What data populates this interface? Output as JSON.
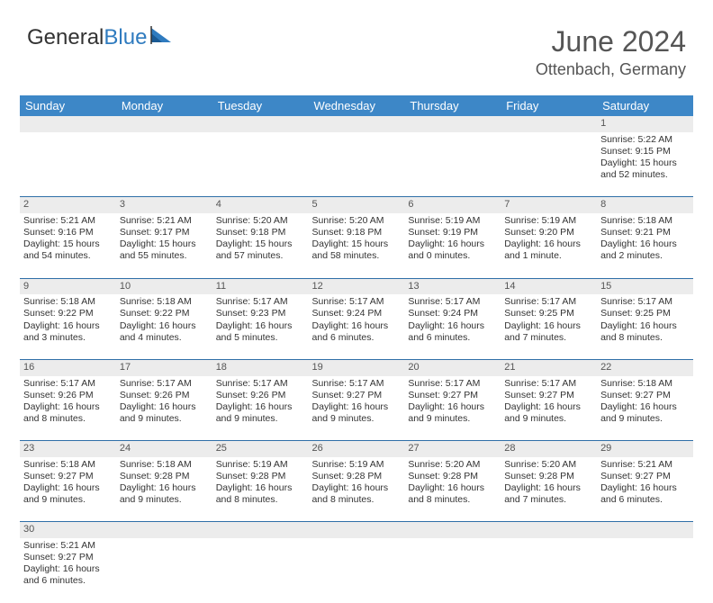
{
  "logo": {
    "text1": "General",
    "text2": "Blue"
  },
  "title": "June 2024",
  "location": "Ottenbach, Germany",
  "colors": {
    "header_bg": "#3d87c7",
    "header_text": "#ffffff",
    "daynum_bg": "#ececec",
    "border": "#2f6fa8",
    "body_text": "#333333",
    "logo_blue": "#2f7bbf"
  },
  "day_headers": [
    "Sunday",
    "Monday",
    "Tuesday",
    "Wednesday",
    "Thursday",
    "Friday",
    "Saturday"
  ],
  "weeks": [
    {
      "nums": [
        "",
        "",
        "",
        "",
        "",
        "",
        "1"
      ],
      "cells": [
        null,
        null,
        null,
        null,
        null,
        null,
        {
          "sr": "Sunrise: 5:22 AM",
          "ss": "Sunset: 9:15 PM",
          "dl1": "Daylight: 15 hours",
          "dl2": "and 52 minutes."
        }
      ]
    },
    {
      "nums": [
        "2",
        "3",
        "4",
        "5",
        "6",
        "7",
        "8"
      ],
      "cells": [
        {
          "sr": "Sunrise: 5:21 AM",
          "ss": "Sunset: 9:16 PM",
          "dl1": "Daylight: 15 hours",
          "dl2": "and 54 minutes."
        },
        {
          "sr": "Sunrise: 5:21 AM",
          "ss": "Sunset: 9:17 PM",
          "dl1": "Daylight: 15 hours",
          "dl2": "and 55 minutes."
        },
        {
          "sr": "Sunrise: 5:20 AM",
          "ss": "Sunset: 9:18 PM",
          "dl1": "Daylight: 15 hours",
          "dl2": "and 57 minutes."
        },
        {
          "sr": "Sunrise: 5:20 AM",
          "ss": "Sunset: 9:18 PM",
          "dl1": "Daylight: 15 hours",
          "dl2": "and 58 minutes."
        },
        {
          "sr": "Sunrise: 5:19 AM",
          "ss": "Sunset: 9:19 PM",
          "dl1": "Daylight: 16 hours",
          "dl2": "and 0 minutes."
        },
        {
          "sr": "Sunrise: 5:19 AM",
          "ss": "Sunset: 9:20 PM",
          "dl1": "Daylight: 16 hours",
          "dl2": "and 1 minute."
        },
        {
          "sr": "Sunrise: 5:18 AM",
          "ss": "Sunset: 9:21 PM",
          "dl1": "Daylight: 16 hours",
          "dl2": "and 2 minutes."
        }
      ]
    },
    {
      "nums": [
        "9",
        "10",
        "11",
        "12",
        "13",
        "14",
        "15"
      ],
      "cells": [
        {
          "sr": "Sunrise: 5:18 AM",
          "ss": "Sunset: 9:22 PM",
          "dl1": "Daylight: 16 hours",
          "dl2": "and 3 minutes."
        },
        {
          "sr": "Sunrise: 5:18 AM",
          "ss": "Sunset: 9:22 PM",
          "dl1": "Daylight: 16 hours",
          "dl2": "and 4 minutes."
        },
        {
          "sr": "Sunrise: 5:17 AM",
          "ss": "Sunset: 9:23 PM",
          "dl1": "Daylight: 16 hours",
          "dl2": "and 5 minutes."
        },
        {
          "sr": "Sunrise: 5:17 AM",
          "ss": "Sunset: 9:24 PM",
          "dl1": "Daylight: 16 hours",
          "dl2": "and 6 minutes."
        },
        {
          "sr": "Sunrise: 5:17 AM",
          "ss": "Sunset: 9:24 PM",
          "dl1": "Daylight: 16 hours",
          "dl2": "and 6 minutes."
        },
        {
          "sr": "Sunrise: 5:17 AM",
          "ss": "Sunset: 9:25 PM",
          "dl1": "Daylight: 16 hours",
          "dl2": "and 7 minutes."
        },
        {
          "sr": "Sunrise: 5:17 AM",
          "ss": "Sunset: 9:25 PM",
          "dl1": "Daylight: 16 hours",
          "dl2": "and 8 minutes."
        }
      ]
    },
    {
      "nums": [
        "16",
        "17",
        "18",
        "19",
        "20",
        "21",
        "22"
      ],
      "cells": [
        {
          "sr": "Sunrise: 5:17 AM",
          "ss": "Sunset: 9:26 PM",
          "dl1": "Daylight: 16 hours",
          "dl2": "and 8 minutes."
        },
        {
          "sr": "Sunrise: 5:17 AM",
          "ss": "Sunset: 9:26 PM",
          "dl1": "Daylight: 16 hours",
          "dl2": "and 9 minutes."
        },
        {
          "sr": "Sunrise: 5:17 AM",
          "ss": "Sunset: 9:26 PM",
          "dl1": "Daylight: 16 hours",
          "dl2": "and 9 minutes."
        },
        {
          "sr": "Sunrise: 5:17 AM",
          "ss": "Sunset: 9:27 PM",
          "dl1": "Daylight: 16 hours",
          "dl2": "and 9 minutes."
        },
        {
          "sr": "Sunrise: 5:17 AM",
          "ss": "Sunset: 9:27 PM",
          "dl1": "Daylight: 16 hours",
          "dl2": "and 9 minutes."
        },
        {
          "sr": "Sunrise: 5:17 AM",
          "ss": "Sunset: 9:27 PM",
          "dl1": "Daylight: 16 hours",
          "dl2": "and 9 minutes."
        },
        {
          "sr": "Sunrise: 5:18 AM",
          "ss": "Sunset: 9:27 PM",
          "dl1": "Daylight: 16 hours",
          "dl2": "and 9 minutes."
        }
      ]
    },
    {
      "nums": [
        "23",
        "24",
        "25",
        "26",
        "27",
        "28",
        "29"
      ],
      "cells": [
        {
          "sr": "Sunrise: 5:18 AM",
          "ss": "Sunset: 9:27 PM",
          "dl1": "Daylight: 16 hours",
          "dl2": "and 9 minutes."
        },
        {
          "sr": "Sunrise: 5:18 AM",
          "ss": "Sunset: 9:28 PM",
          "dl1": "Daylight: 16 hours",
          "dl2": "and 9 minutes."
        },
        {
          "sr": "Sunrise: 5:19 AM",
          "ss": "Sunset: 9:28 PM",
          "dl1": "Daylight: 16 hours",
          "dl2": "and 8 minutes."
        },
        {
          "sr": "Sunrise: 5:19 AM",
          "ss": "Sunset: 9:28 PM",
          "dl1": "Daylight: 16 hours",
          "dl2": "and 8 minutes."
        },
        {
          "sr": "Sunrise: 5:20 AM",
          "ss": "Sunset: 9:28 PM",
          "dl1": "Daylight: 16 hours",
          "dl2": "and 8 minutes."
        },
        {
          "sr": "Sunrise: 5:20 AM",
          "ss": "Sunset: 9:28 PM",
          "dl1": "Daylight: 16 hours",
          "dl2": "and 7 minutes."
        },
        {
          "sr": "Sunrise: 5:21 AM",
          "ss": "Sunset: 9:27 PM",
          "dl1": "Daylight: 16 hours",
          "dl2": "and 6 minutes."
        }
      ]
    },
    {
      "nums": [
        "30",
        "",
        "",
        "",
        "",
        "",
        ""
      ],
      "cells": [
        {
          "sr": "Sunrise: 5:21 AM",
          "ss": "Sunset: 9:27 PM",
          "dl1": "Daylight: 16 hours",
          "dl2": "and 6 minutes."
        },
        null,
        null,
        null,
        null,
        null,
        null
      ]
    }
  ]
}
